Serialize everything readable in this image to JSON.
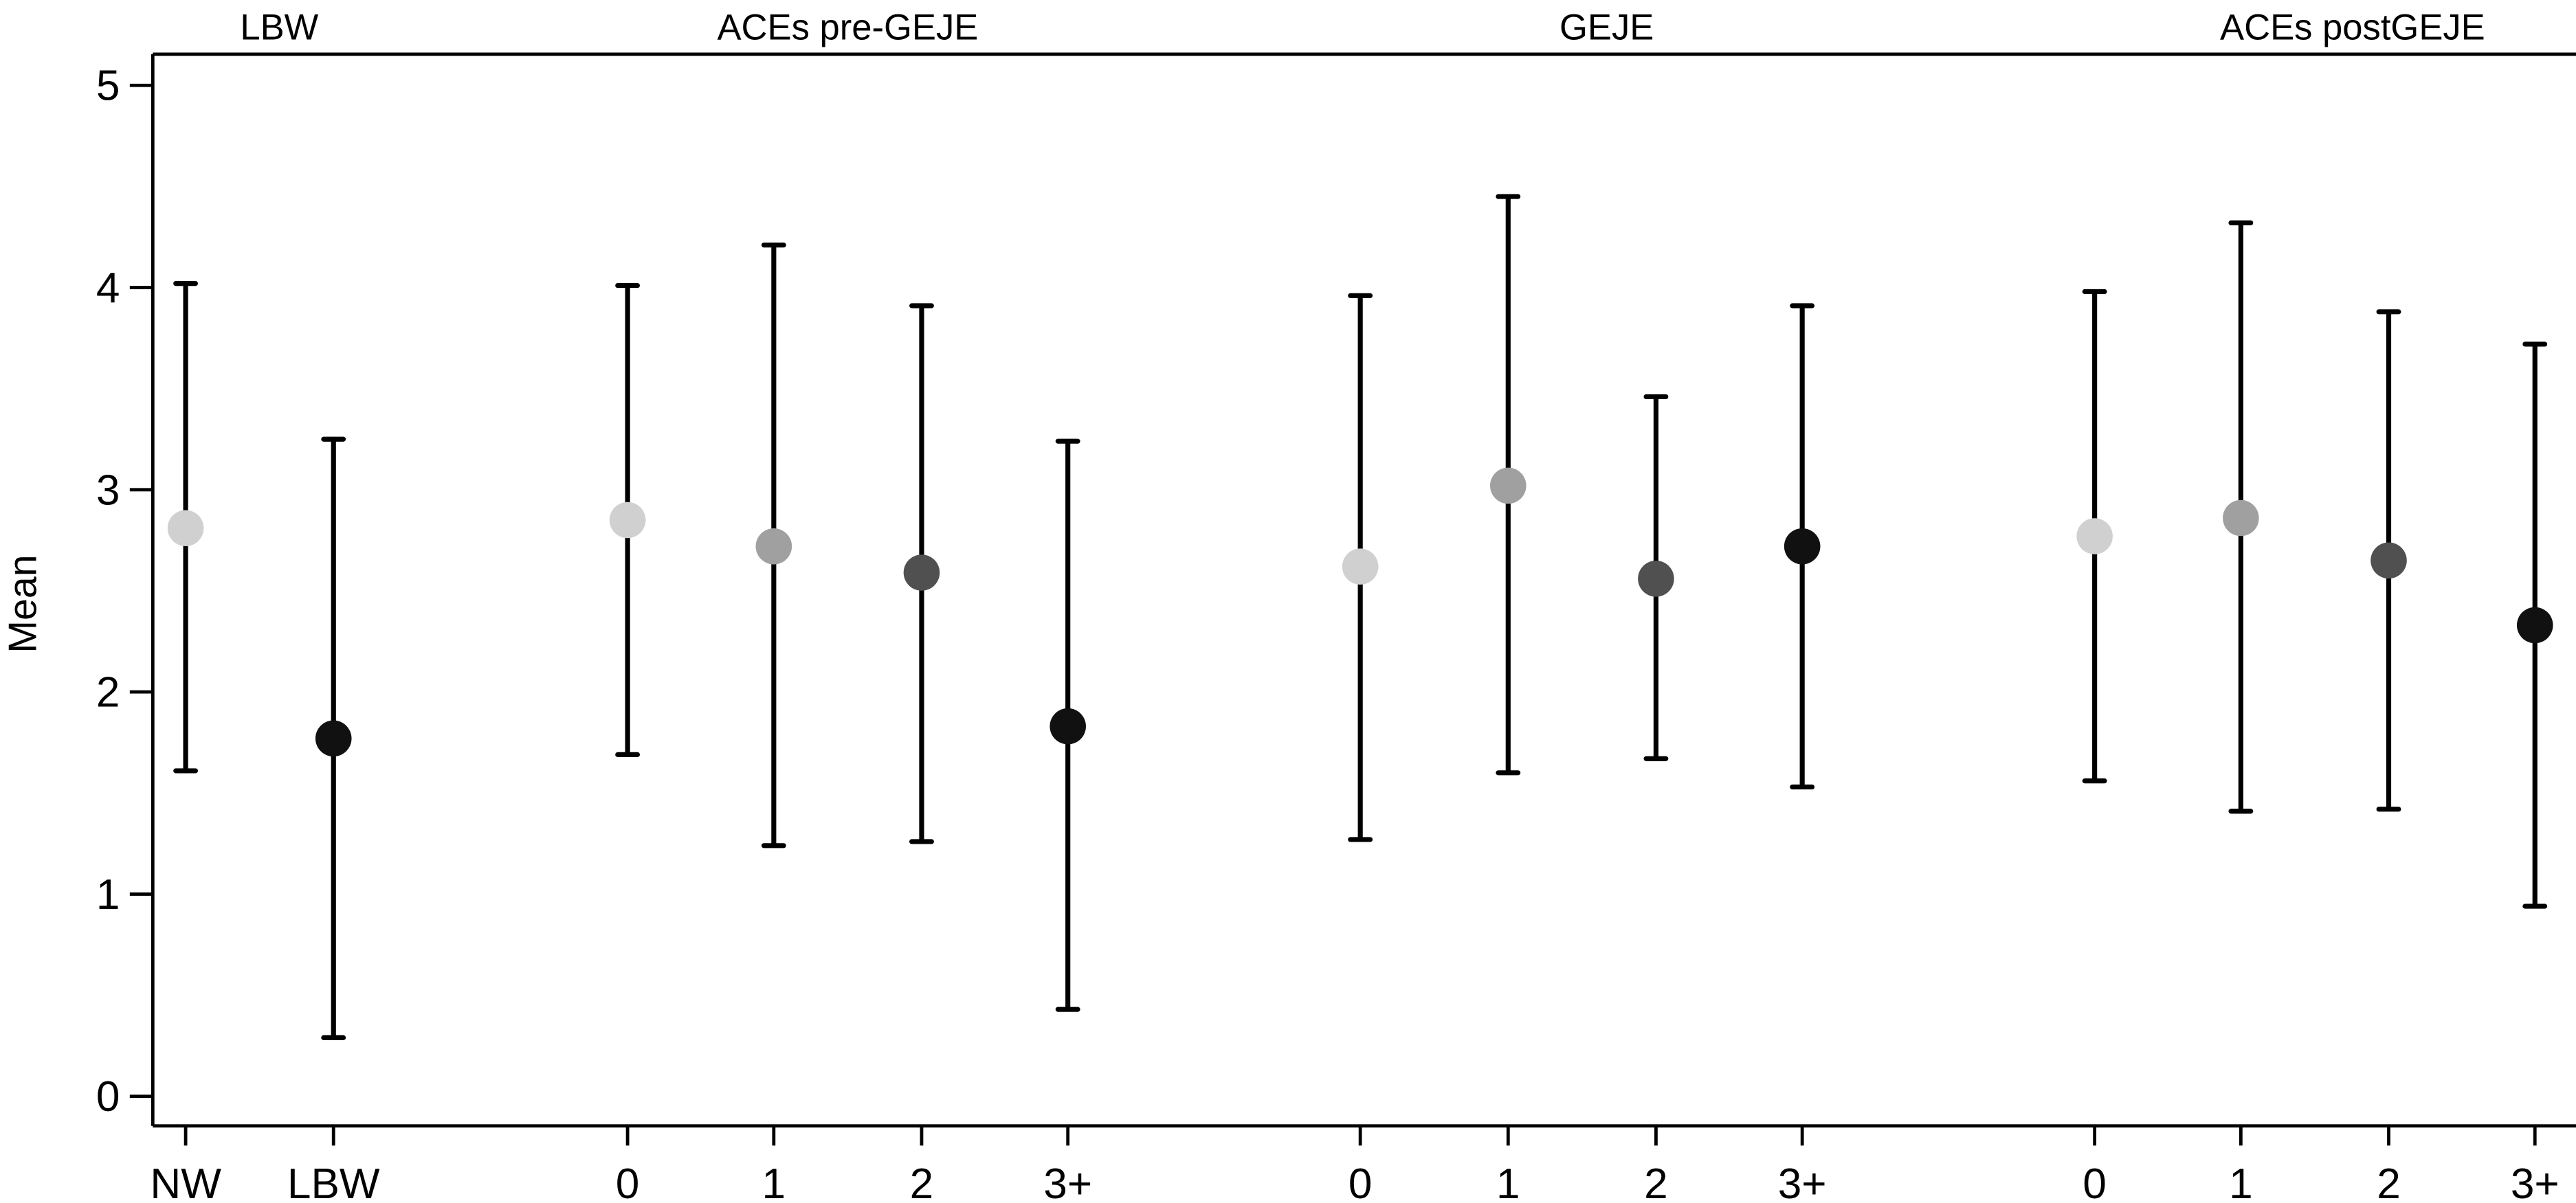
{
  "chart_data": {
    "type": "scatter",
    "subtype": "mean with error bars (grouped)",
    "title": "",
    "xlabel": "",
    "ylabel": "Mean",
    "ylim": [
      -0.15,
      5.15
    ],
    "yticks": [
      0,
      1,
      2,
      3,
      4,
      5
    ],
    "grid": false,
    "legend": null,
    "groups": [
      {
        "name": "LBW",
        "categories": [
          "NW",
          "LBW"
        ],
        "mean": [
          2.81,
          1.77
        ],
        "lower": [
          1.61,
          0.29
        ],
        "upper": [
          4.02,
          3.25
        ],
        "marker_colors": [
          "#d0d0d0",
          "#111111"
        ]
      },
      {
        "name": "ACEs pre-GEJE",
        "categories": [
          "0",
          "1",
          "2",
          "3+"
        ],
        "mean": [
          2.85,
          2.72,
          2.59,
          1.83
        ],
        "lower": [
          1.69,
          1.24,
          1.26,
          0.43
        ],
        "upper": [
          4.01,
          4.21,
          3.91,
          3.24
        ],
        "marker_colors": [
          "#d0d0d0",
          "#a0a0a0",
          "#505050",
          "#111111"
        ]
      },
      {
        "name": "GEJE",
        "categories": [
          "0",
          "1",
          "2",
          "3+"
        ],
        "mean": [
          2.62,
          3.02,
          2.56,
          2.72
        ],
        "lower": [
          1.27,
          1.6,
          1.67,
          1.53
        ],
        "upper": [
          3.96,
          4.45,
          3.46,
          3.91
        ],
        "marker_colors": [
          "#d0d0d0",
          "#a0a0a0",
          "#505050",
          "#111111"
        ]
      },
      {
        "name": "ACEs postGEJE",
        "categories": [
          "0",
          "1",
          "2",
          "3+"
        ],
        "mean": [
          2.77,
          2.86,
          2.65,
          2.33
        ],
        "lower": [
          1.56,
          1.41,
          1.42,
          0.94
        ],
        "upper": [
          3.98,
          4.32,
          3.88,
          3.72
        ],
        "marker_colors": [
          "#d0d0d0",
          "#a0a0a0",
          "#505050",
          "#111111"
        ]
      }
    ]
  },
  "axes": {
    "y_title": "Mean",
    "y_tick_labels": [
      "0",
      "1",
      "2",
      "3",
      "4",
      "5"
    ]
  }
}
